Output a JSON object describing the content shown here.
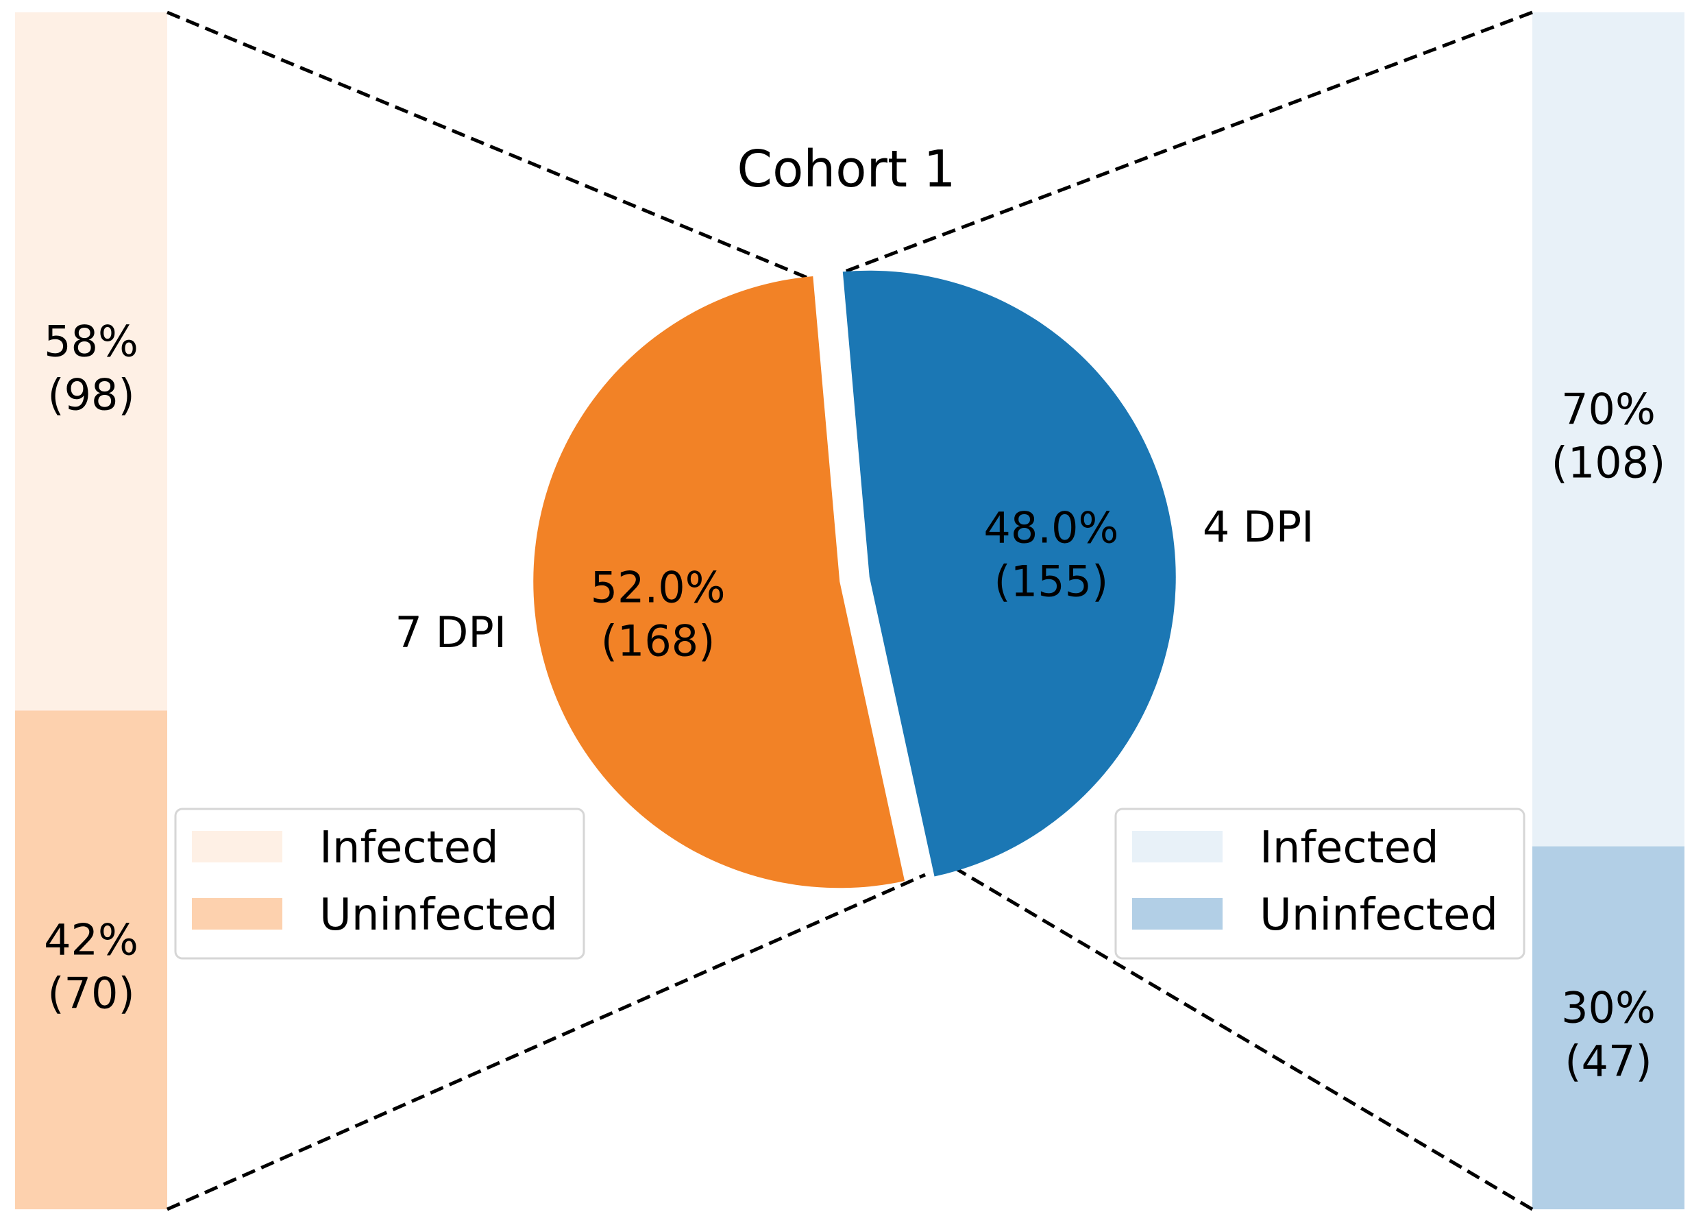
{
  "chart_data": {
    "type": "pie",
    "title": "Cohort 1",
    "slices": [
      {
        "label": "4 DPI",
        "pct": "48.0%",
        "count": "(155)",
        "value": 155,
        "color": "#1b77b4"
      },
      {
        "label": "7 DPI",
        "pct": "52.0%",
        "count": "(168)",
        "value": 168,
        "color": "#f28226"
      }
    ],
    "left_bar": {
      "segments": [
        {
          "name": "Infected",
          "pct": "58%",
          "count": "(98)",
          "value": 98,
          "color": "#fef0e5"
        },
        {
          "name": "Uninfected",
          "pct": "42%",
          "count": "(70)",
          "value": 70,
          "color": "#fdd1ae"
        }
      ]
    },
    "right_bar": {
      "segments": [
        {
          "name": "Infected",
          "pct": "70%",
          "count": "(108)",
          "value": 108,
          "color": "#e8f1f8"
        },
        {
          "name": "Uninfected",
          "pct": "30%",
          "count": "(47)",
          "value": 47,
          "color": "#b2cfe6"
        }
      ]
    },
    "legends": {
      "left": [
        "Infected",
        "Uninfected"
      ],
      "right": [
        "Infected",
        "Uninfected"
      ]
    }
  }
}
